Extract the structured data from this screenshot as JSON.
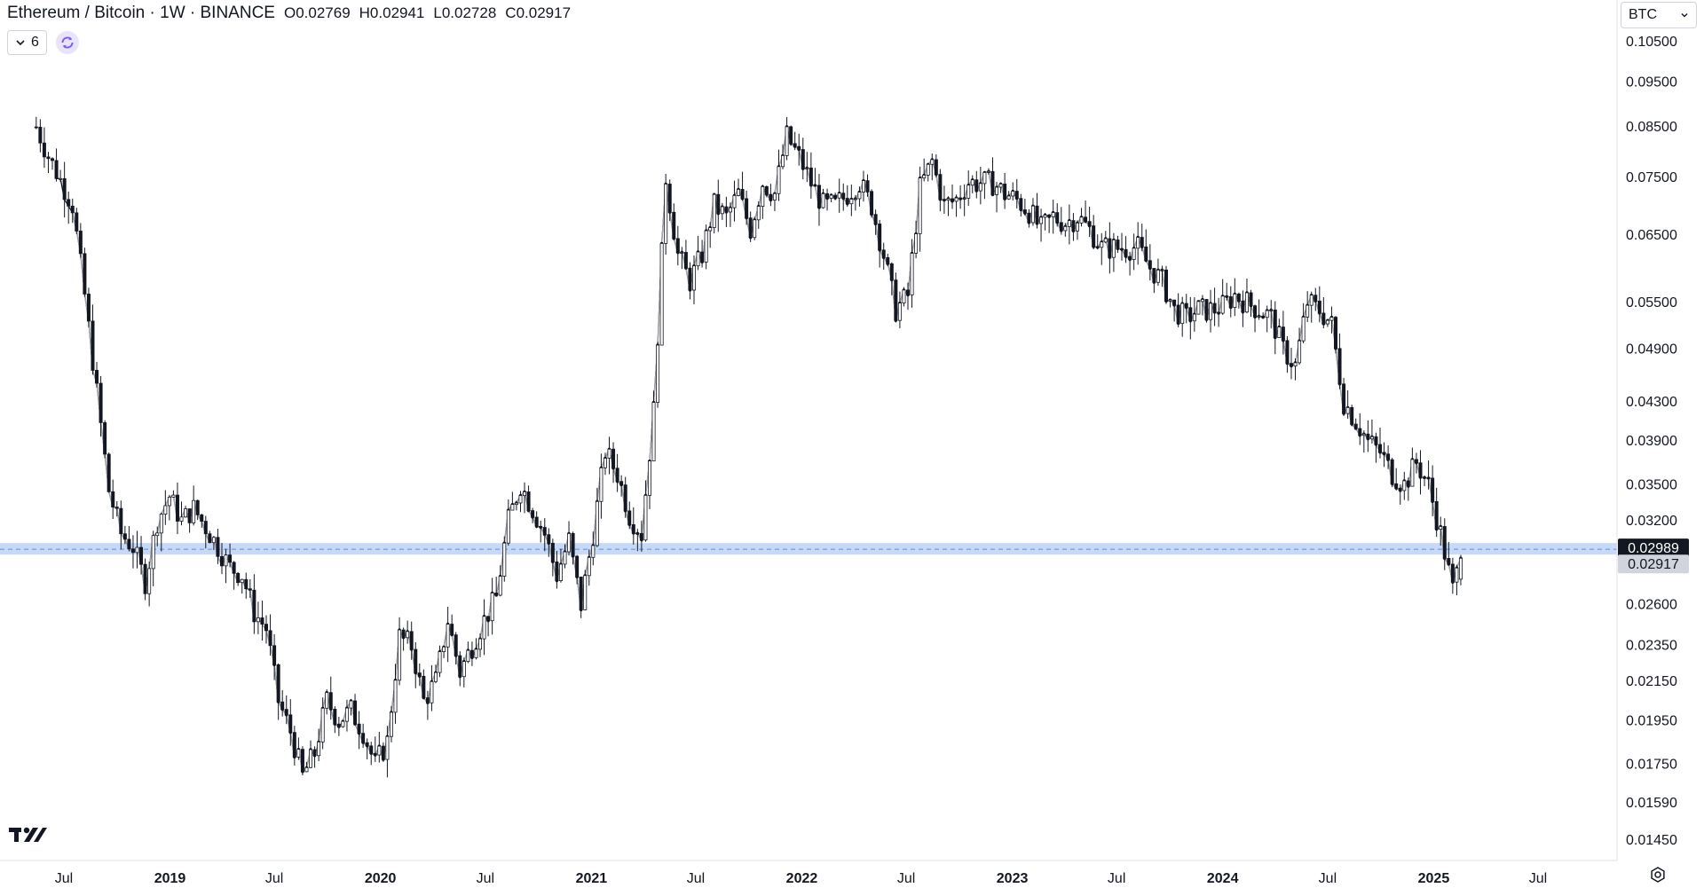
{
  "header": {
    "symbol": "Ethereum / Bitcoin · 1W · BINANCE",
    "open": "O0.02769",
    "high": "H0.02941",
    "low": "L0.02728",
    "close": "C0.02917"
  },
  "indicators_toggle": {
    "count": "6"
  },
  "currency_button": {
    "label": "BTC"
  },
  "colors": {
    "candle": "#131722",
    "ma_fast": "#131722",
    "ma_slow": "#a8a8a8",
    "ma_long_dotted": "#131722",
    "highlight_band": "#bcd3f7",
    "axis_text": "#131722"
  },
  "icons": [
    "chevron-down-icon",
    "refresh-icon",
    "tradingview-logo-icon",
    "settings-icon"
  ],
  "chart_data": {
    "type": "candlestick",
    "scale": "log",
    "timeframe": "1W",
    "y_ticks": [
      "0.10500",
      "0.09500",
      "0.08500",
      "0.07500",
      "0.06500",
      "0.05500",
      "0.04900",
      "0.04300",
      "0.03900",
      "0.03500",
      "0.03200",
      "0.02600",
      "0.02350",
      "0.02150",
      "0.01950",
      "0.01750",
      "0.01590",
      "0.01450"
    ],
    "x_ticks": [
      "Jul",
      "2019",
      "Jul",
      "2020",
      "Jul",
      "2021",
      "Jul",
      "2022",
      "Jul",
      "2023",
      "Jul",
      "2024",
      "Jul",
      "2025",
      "Jul"
    ],
    "x_tick_dates": [
      "2018-07-01",
      "2019-01-01",
      "2019-07-01",
      "2020-01-01",
      "2020-07-01",
      "2021-01-01",
      "2021-07-01",
      "2022-01-01",
      "2022-07-01",
      "2023-01-01",
      "2023-07-01",
      "2024-01-01",
      "2024-07-01",
      "2025-01-01",
      "2025-07-01"
    ],
    "price_labels": [
      {
        "value": "0.02989",
        "style": "dark"
      },
      {
        "value": "0.02917",
        "style": "light"
      }
    ],
    "horizontal_level": 0.02989,
    "close_series": [
      [
        "2018-05-14",
        0.085
      ],
      [
        "2018-06-04",
        0.079
      ],
      [
        "2018-06-25",
        0.0745
      ],
      [
        "2018-07-16",
        0.07
      ],
      [
        "2018-08-06",
        0.056
      ],
      [
        "2018-08-27",
        0.044
      ],
      [
        "2018-09-17",
        0.0345
      ],
      [
        "2018-10-08",
        0.031
      ],
      [
        "2018-10-29",
        0.03
      ],
      [
        "2018-11-19",
        0.0275
      ],
      [
        "2018-12-10",
        0.032
      ],
      [
        "2018-12-31",
        0.034
      ],
      [
        "2019-01-21",
        0.032
      ],
      [
        "2019-02-11",
        0.033
      ],
      [
        "2019-03-04",
        0.0315
      ],
      [
        "2019-03-25",
        0.03
      ],
      [
        "2019-04-15",
        0.0285
      ],
      [
        "2019-05-06",
        0.028
      ],
      [
        "2019-05-27",
        0.0255
      ],
      [
        "2019-06-17",
        0.0245
      ],
      [
        "2019-07-08",
        0.0205
      ],
      [
        "2019-07-29",
        0.019
      ],
      [
        "2019-08-19",
        0.017
      ],
      [
        "2019-09-09",
        0.018
      ],
      [
        "2019-09-30",
        0.0205
      ],
      [
        "2019-10-21",
        0.0195
      ],
      [
        "2019-11-11",
        0.02
      ],
      [
        "2019-12-02",
        0.019
      ],
      [
        "2019-12-23",
        0.0175
      ],
      [
        "2020-01-13",
        0.0185
      ],
      [
        "2020-02-03",
        0.024
      ],
      [
        "2020-02-24",
        0.0235
      ],
      [
        "2020-03-16",
        0.0205
      ],
      [
        "2020-04-06",
        0.0215
      ],
      [
        "2020-04-27",
        0.025
      ],
      [
        "2020-05-18",
        0.022
      ],
      [
        "2020-06-08",
        0.0235
      ],
      [
        "2020-06-29",
        0.025
      ],
      [
        "2020-07-20",
        0.0265
      ],
      [
        "2020-08-10",
        0.032
      ],
      [
        "2020-08-31",
        0.035
      ],
      [
        "2020-09-21",
        0.033
      ],
      [
        "2020-10-12",
        0.031
      ],
      [
        "2020-11-02",
        0.028
      ],
      [
        "2020-11-23",
        0.0305
      ],
      [
        "2020-12-14",
        0.026
      ],
      [
        "2021-01-04",
        0.031
      ],
      [
        "2021-01-25",
        0.038
      ],
      [
        "2021-02-15",
        0.036
      ],
      [
        "2021-03-08",
        0.0325
      ],
      [
        "2021-03-29",
        0.031
      ],
      [
        "2021-04-19",
        0.042
      ],
      [
        "2021-05-10",
        0.075
      ],
      [
        "2021-05-31",
        0.062
      ],
      [
        "2021-06-21",
        0.058
      ],
      [
        "2021-07-12",
        0.062
      ],
      [
        "2021-08-02",
        0.07
      ],
      [
        "2021-08-23",
        0.068
      ],
      [
        "2021-09-13",
        0.072
      ],
      [
        "2021-10-04",
        0.066
      ],
      [
        "2021-10-25",
        0.074
      ],
      [
        "2021-11-15",
        0.072
      ],
      [
        "2021-12-06",
        0.083
      ],
      [
        "2021-12-27",
        0.079
      ],
      [
        "2022-01-17",
        0.074
      ],
      [
        "2022-02-07",
        0.07
      ],
      [
        "2022-02-28",
        0.07
      ],
      [
        "2022-03-21",
        0.072
      ],
      [
        "2022-04-11",
        0.074
      ],
      [
        "2022-05-02",
        0.07
      ],
      [
        "2022-05-23",
        0.062
      ],
      [
        "2022-06-13",
        0.054
      ],
      [
        "2022-07-04",
        0.056
      ],
      [
        "2022-07-25",
        0.073
      ],
      [
        "2022-08-15",
        0.078
      ],
      [
        "2022-09-05",
        0.07
      ],
      [
        "2022-09-26",
        0.071
      ],
      [
        "2022-10-17",
        0.074
      ],
      [
        "2022-11-07",
        0.074
      ],
      [
        "2022-11-28",
        0.074
      ],
      [
        "2022-12-19",
        0.072
      ],
      [
        "2023-01-09",
        0.071
      ],
      [
        "2023-01-30",
        0.069
      ],
      [
        "2023-02-20",
        0.066
      ],
      [
        "2023-03-13",
        0.068
      ],
      [
        "2023-04-03",
        0.067
      ],
      [
        "2023-04-24",
        0.068
      ],
      [
        "2023-05-15",
        0.066
      ],
      [
        "2023-06-05",
        0.063
      ],
      [
        "2023-06-26",
        0.063
      ],
      [
        "2023-07-17",
        0.063
      ],
      [
        "2023-08-07",
        0.063
      ],
      [
        "2023-08-28",
        0.06
      ],
      [
        "2023-09-18",
        0.058
      ],
      [
        "2023-10-09",
        0.054
      ],
      [
        "2023-10-30",
        0.053
      ],
      [
        "2023-11-20",
        0.054
      ],
      [
        "2023-12-11",
        0.054
      ],
      [
        "2024-01-01",
        0.0545
      ],
      [
        "2024-01-22",
        0.056
      ],
      [
        "2024-02-12",
        0.055
      ],
      [
        "2024-03-04",
        0.054
      ],
      [
        "2024-03-25",
        0.053
      ],
      [
        "2024-04-15",
        0.049
      ],
      [
        "2024-05-06",
        0.047
      ],
      [
        "2024-05-27",
        0.055
      ],
      [
        "2024-06-17",
        0.054
      ],
      [
        "2024-07-08",
        0.052
      ],
      [
        "2024-07-29",
        0.043
      ],
      [
        "2024-08-19",
        0.041
      ],
      [
        "2024-09-09",
        0.039
      ],
      [
        "2024-09-30",
        0.038
      ],
      [
        "2024-10-21",
        0.036
      ],
      [
        "2024-11-11",
        0.035
      ],
      [
        "2024-12-02",
        0.037
      ],
      [
        "2024-12-23",
        0.035
      ],
      [
        "2025-01-13",
        0.031
      ],
      [
        "2025-02-03",
        0.027
      ],
      [
        "2025-02-17",
        0.02917
      ]
    ]
  }
}
